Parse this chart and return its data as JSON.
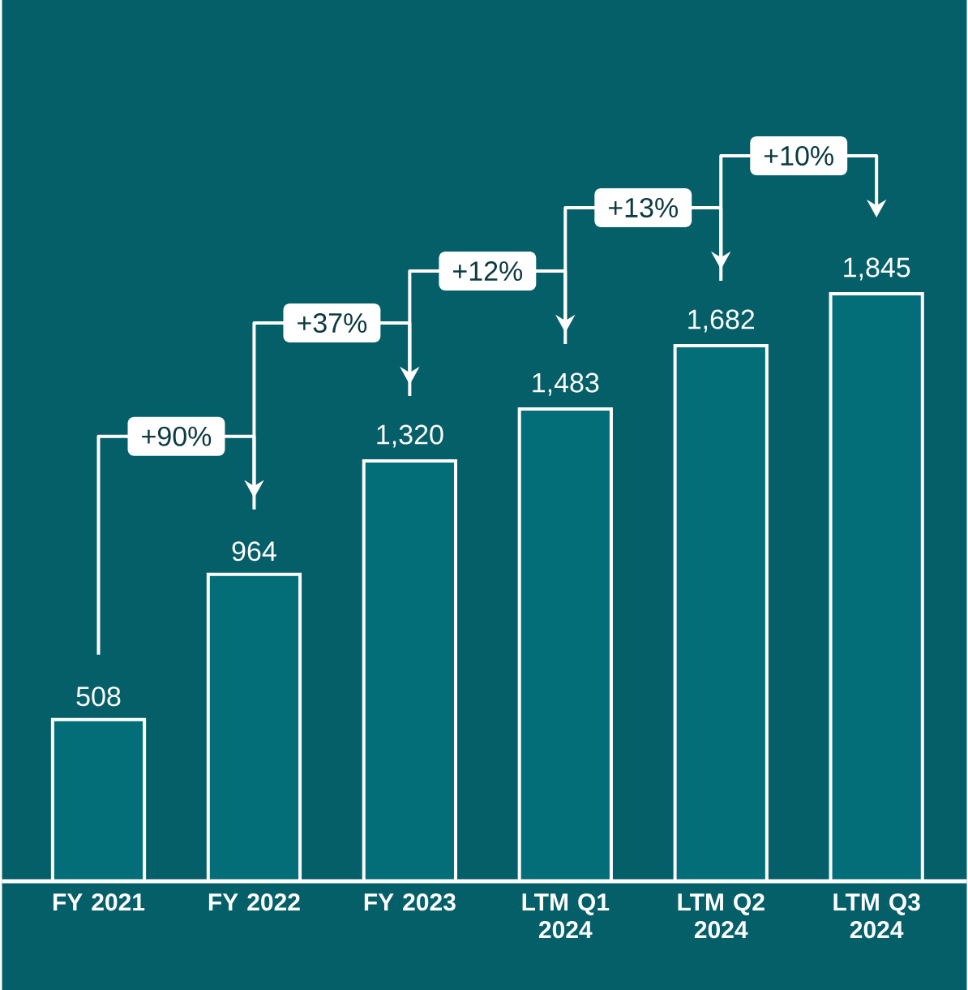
{
  "chart_data": {
    "type": "bar",
    "categories": [
      "FY 2021",
      "FY 2022",
      "FY 2023",
      "LTM Q1 2024",
      "LTM Q2 2024",
      "LTM Q3 2024"
    ],
    "values": [
      508,
      964,
      1320,
      1483,
      1682,
      1845
    ],
    "value_labels": [
      "508",
      "964",
      "1,320",
      "1,483",
      "1,682",
      "1,845"
    ],
    "color": "#036e78",
    "annotations": [
      "+90%",
      "+37%",
      "+12%",
      "+13%",
      "+10%"
    ]
  }
}
